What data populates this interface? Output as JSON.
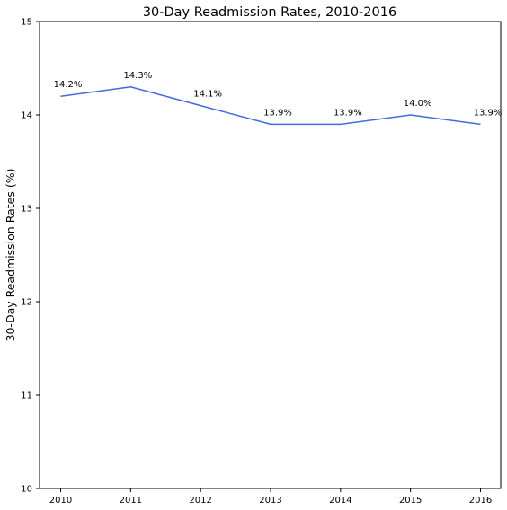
{
  "chart_data": {
    "type": "line",
    "title": "30-Day Readmission Rates, 2010-2016",
    "xlabel": "",
    "ylabel": "30-Day Readmission Rates (%)",
    "x": [
      "2010",
      "2011",
      "2012",
      "2013",
      "2014",
      "2015",
      "2016"
    ],
    "series": [
      {
        "values": [
          14.2,
          14.3,
          14.1,
          13.9,
          13.9,
          14.0,
          13.9
        ],
        "color": "#4169e1"
      }
    ],
    "data_labels": [
      "14.2%",
      "14.3%",
      "14.1%",
      "13.9%",
      "13.9%",
      "14.0%",
      "13.9%"
    ],
    "ylim": [
      10,
      15
    ],
    "yticks": [
      10,
      11,
      12,
      13,
      14,
      15
    ],
    "grid": false,
    "legend": "none"
  }
}
